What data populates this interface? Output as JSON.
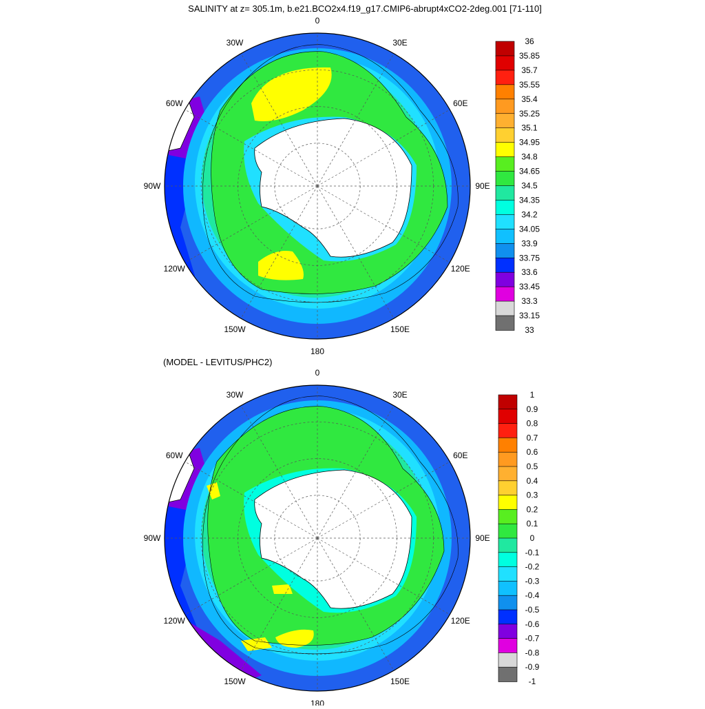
{
  "figure": {
    "title": "SALINITY at z= 305.1m, b.e21.BCO2x4.f19_g17.CMIP6-abrupt4xCO2-2deg.001 [71-110]",
    "subtitle": "(MODEL - LEVITUS/PHC2)"
  },
  "lon_labels": [
    "0",
    "30E",
    "60E",
    "90E",
    "120E",
    "150E",
    "180",
    "150W",
    "120W",
    "90W",
    "60W",
    "30W"
  ],
  "colors": {
    "land": "#ffffff",
    "coast": "#000000",
    "grid": "#555555"
  },
  "maps": [
    {
      "name": "salinity-map",
      "kind": "field",
      "colorbar": {
        "labels": [
          "36",
          "35.85",
          "35.7",
          "35.55",
          "35.4",
          "35.25",
          "35.1",
          "34.95",
          "34.8",
          "34.65",
          "34.5",
          "34.35",
          "34.2",
          "34.05",
          "33.9",
          "33.75",
          "33.6",
          "33.45",
          "33.3",
          "33.15",
          "33"
        ],
        "colors": [
          "#c00000",
          "#e00000",
          "#ff2010",
          "#ff8000",
          "#ff9a20",
          "#ffb030",
          "#ffd030",
          "#ffff00",
          "#58ee20",
          "#30e840",
          "#20e8a0",
          "#00ffe0",
          "#20e0ff",
          "#10c0ff",
          "#1090ee",
          "#0030ff",
          "#8000e0",
          "#e000e0",
          "#d8d8d8",
          "#707070"
        ]
      },
      "features": {
        "outer": "#2060ee",
        "ring1": "#10b8ff",
        "ring2": "#20e0ff",
        "ring3": "#20e8a0",
        "core": "#30e840",
        "hot": "#ffff00",
        "shelf": "#20e0ff",
        "low": "#0030ff",
        "lowest": "#8000e0"
      }
    },
    {
      "name": "difference-map",
      "kind": "difference",
      "colorbar": {
        "labels": [
          "1",
          "0.9",
          "0.8",
          "0.7",
          "0.6",
          "0.5",
          "0.4",
          "0.3",
          "0.2",
          "0.1",
          "0",
          "-0.1",
          "-0.2",
          "-0.3",
          "-0.4",
          "-0.5",
          "-0.6",
          "-0.7",
          "-0.8",
          "-0.9",
          "-1"
        ],
        "colors": [
          "#c00000",
          "#e00000",
          "#ff2010",
          "#ff8000",
          "#ff9a20",
          "#ffb030",
          "#ffd030",
          "#ffff00",
          "#58ee20",
          "#30e840",
          "#20e8a0",
          "#00ffe0",
          "#20e0ff",
          "#10c0ff",
          "#1090ee",
          "#0030ff",
          "#8000e0",
          "#e000e0",
          "#d8d8d8",
          "#707070"
        ]
      },
      "features": {
        "outer": "#2060ee",
        "ring1": "#10b8ff",
        "ring2": "#20e0ff",
        "ring3": "#20e8a0",
        "core": "#30e840",
        "hot": "#ffff00",
        "shelf": "#00ffe0",
        "low": "#0030ff",
        "lowest": "#8000e0"
      }
    }
  ]
}
